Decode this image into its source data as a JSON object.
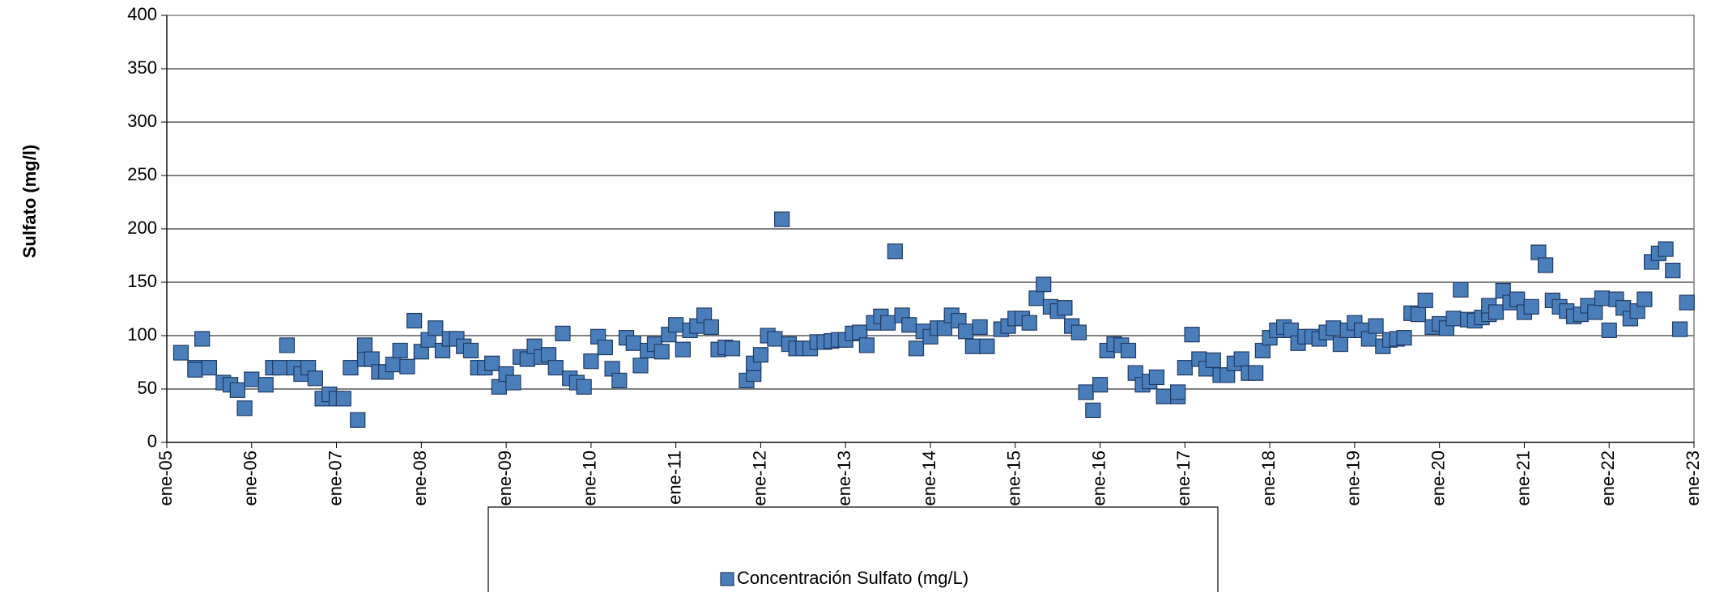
{
  "chart_data": {
    "type": "scatter",
    "y_label": "Sulfato (mg/l)",
    "ylim": [
      0,
      400
    ],
    "yticks": [
      0,
      50,
      100,
      150,
      200,
      250,
      300,
      350,
      400
    ],
    "xlim": [
      "2005-01",
      "2023-01"
    ],
    "xticks": [
      {
        "value": "2005-01",
        "label": "ene-05"
      },
      {
        "value": "2006-01",
        "label": "ene-06"
      },
      {
        "value": "2007-01",
        "label": "ene-07"
      },
      {
        "value": "2008-01",
        "label": "ene-08"
      },
      {
        "value": "2009-01",
        "label": "ene-09"
      },
      {
        "value": "2010-01",
        "label": "ene-10"
      },
      {
        "value": "2011-01",
        "label": "ene-11"
      },
      {
        "value": "2012-01",
        "label": "ene-12"
      },
      {
        "value": "2013-01",
        "label": "ene-13"
      },
      {
        "value": "2014-01",
        "label": "ene-14"
      },
      {
        "value": "2015-01",
        "label": "ene-15"
      },
      {
        "value": "2016-01",
        "label": "ene-16"
      },
      {
        "value": "2017-01",
        "label": "ene-17"
      },
      {
        "value": "2018-01",
        "label": "ene-18"
      },
      {
        "value": "2019-01",
        "label": "ene-19"
      },
      {
        "value": "2020-01",
        "label": "ene-20"
      },
      {
        "value": "2021-01",
        "label": "ene-21"
      },
      {
        "value": "2022-01",
        "label": "ene-22"
      },
      {
        "value": "2023-01",
        "label": "ene-23"
      }
    ],
    "grid": true,
    "legend": "bottom",
    "series": [
      {
        "name": "Concentración Sulfato (mg/L)",
        "color": "#4a7ebb",
        "x": [
          "2005-03",
          "2005-05",
          "2005-05",
          "2005-06",
          "2005-07",
          "2005-09",
          "2005-10",
          "2005-11",
          "2005-12",
          "2006-01",
          "2006-03",
          "2006-04",
          "2006-05",
          "2006-06",
          "2006-07",
          "2006-08",
          "2006-09",
          "2006-10",
          "2006-11",
          "2006-12",
          "2007-01",
          "2007-02",
          "2007-03",
          "2007-04",
          "2007-05",
          "2007-05",
          "2007-06",
          "2007-07",
          "2007-08",
          "2007-09",
          "2007-10",
          "2007-11",
          "2007-12",
          "2008-01",
          "2008-02",
          "2008-03",
          "2008-04",
          "2008-05",
          "2008-06",
          "2008-07",
          "2008-08",
          "2008-09",
          "2008-10",
          "2008-11",
          "2008-12",
          "2009-01",
          "2009-02",
          "2009-03",
          "2009-04",
          "2009-05",
          "2009-06",
          "2009-07",
          "2009-08",
          "2009-09",
          "2009-10",
          "2009-11",
          "2009-12",
          "2010-01",
          "2010-02",
          "2010-03",
          "2010-04",
          "2010-05",
          "2010-06",
          "2010-07",
          "2010-08",
          "2010-09",
          "2010-10",
          "2010-11",
          "2010-12",
          "2011-01",
          "2011-02",
          "2011-03",
          "2011-04",
          "2011-05",
          "2011-06",
          "2011-07",
          "2011-08",
          "2011-09",
          "2011-11",
          "2011-12",
          "2011-12",
          "2012-01",
          "2012-02",
          "2012-03",
          "2012-04",
          "2012-05",
          "2012-06",
          "2012-07",
          "2012-08",
          "2012-09",
          "2012-10",
          "2012-11",
          "2012-12",
          "2013-01",
          "2013-02",
          "2013-03",
          "2013-04",
          "2013-05",
          "2013-06",
          "2013-07",
          "2013-08",
          "2013-09",
          "2013-10",
          "2013-11",
          "2013-12",
          "2014-01",
          "2014-02",
          "2014-03",
          "2014-04",
          "2014-05",
          "2014-06",
          "2014-07",
          "2014-08",
          "2014-09",
          "2014-11",
          "2014-12",
          "2015-01",
          "2015-02",
          "2015-03",
          "2015-04",
          "2015-05",
          "2015-06",
          "2015-07",
          "2015-08",
          "2015-09",
          "2015-10",
          "2015-11",
          "2015-12",
          "2016-01",
          "2016-02",
          "2016-03",
          "2016-04",
          "2016-05",
          "2016-06",
          "2016-07",
          "2016-08",
          "2016-09",
          "2016-10",
          "2016-12",
          "2016-12",
          "2017-01",
          "2017-02",
          "2017-03",
          "2017-04",
          "2017-05",
          "2017-06",
          "2017-07",
          "2017-08",
          "2017-09",
          "2017-10",
          "2017-11",
          "2017-12",
          "2018-01",
          "2018-02",
          "2018-03",
          "2018-04",
          "2018-05",
          "2018-06",
          "2018-07",
          "2018-08",
          "2018-09",
          "2018-10",
          "2018-11",
          "2018-12",
          "2019-01",
          "2019-02",
          "2019-03",
          "2019-04",
          "2019-05",
          "2019-06",
          "2019-07",
          "2019-08",
          "2019-09",
          "2019-10",
          "2019-11",
          "2019-12",
          "2020-01",
          "2020-02",
          "2020-03",
          "2020-04",
          "2020-05",
          "2020-06",
          "2020-07",
          "2020-08",
          "2020-08",
          "2020-09",
          "2020-10",
          "2020-11",
          "2020-12",
          "2021-01",
          "2021-02",
          "2021-03",
          "2021-04",
          "2021-05",
          "2021-06",
          "2021-07",
          "2021-08",
          "2021-09",
          "2021-10",
          "2021-11",
          "2021-12",
          "2022-01",
          "2022-02",
          "2022-03",
          "2022-04",
          "2022-05",
          "2022-06",
          "2022-07",
          "2022-08",
          "2022-09",
          "2022-10",
          "2022-11",
          "2022-12"
        ],
        "values": [
          84,
          70,
          68,
          97,
          70,
          56,
          54,
          49,
          32,
          59,
          54,
          70,
          70,
          91,
          70,
          64,
          70,
          60,
          41,
          45,
          41,
          41,
          70,
          21,
          78,
          91,
          78,
          66,
          66,
          73,
          86,
          71,
          114,
          85,
          96,
          107,
          86,
          97,
          97,
          90,
          86,
          70,
          70,
          74,
          52,
          64,
          56,
          80,
          78,
          90,
          80,
          82,
          70,
          102,
          60,
          56,
          52,
          76,
          99,
          89,
          69,
          58,
          98,
          93,
          72,
          86,
          92,
          85,
          101,
          110,
          87,
          105,
          109,
          119,
          108,
          87,
          89,
          88,
          58,
          64,
          74,
          82,
          100,
          97,
          209,
          92,
          88,
          88,
          88,
          94,
          94,
          95,
          96,
          96,
          102,
          103,
          91,
          112,
          118,
          112,
          179,
          119,
          110,
          88,
          104,
          99,
          107,
          107,
          119,
          114,
          104,
          90,
          108,
          90,
          106,
          109,
          116,
          116,
          112,
          135,
          148,
          127,
          123,
          126,
          109,
          103,
          47,
          30,
          54,
          86,
          92,
          91,
          86,
          65,
          54,
          57,
          61,
          43,
          43,
          47,
          70,
          101,
          78,
          69,
          77,
          63,
          63,
          74,
          78,
          65,
          65,
          86,
          98,
          105,
          108,
          105,
          93,
          99,
          99,
          97,
          103,
          107,
          92,
          105,
          112,
          105,
          97,
          109,
          90,
          96,
          97,
          98,
          121,
          120,
          133,
          108,
          111,
          107,
          116,
          143,
          115,
          114,
          117,
          120,
          128,
          122,
          142,
          131,
          134,
          122,
          127,
          178,
          166,
          133,
          127,
          123,
          118,
          120,
          128,
          122,
          135,
          105,
          134,
          126,
          116,
          123,
          134,
          169,
          177,
          181,
          161,
          106,
          131
        ]
      }
    ]
  }
}
